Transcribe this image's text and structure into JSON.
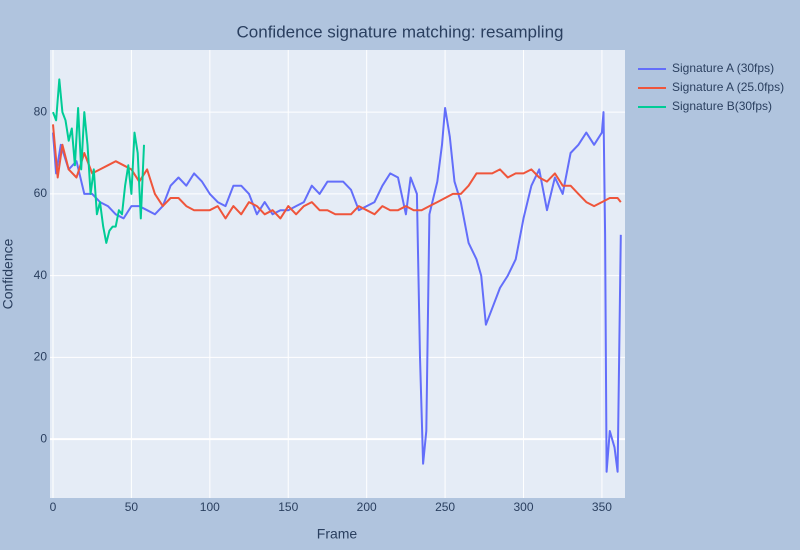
{
  "chart_data": {
    "type": "line",
    "title": "Confidence signature matching: resampling",
    "x_label": "Frame",
    "y_label": "Confidence",
    "xlim": [
      -1.9,
      364.7
    ],
    "ylim": [
      -14.4,
      95.2
    ],
    "xticks": [
      0,
      50,
      100,
      150,
      200,
      250,
      300,
      350
    ],
    "yticks": [
      0,
      20,
      40,
      60,
      80
    ],
    "grid": true,
    "legend": "outside-top-right",
    "series": [
      {
        "name": "Signature A (30fps)",
        "color": "#636efa",
        "x": [
          0,
          2,
          5,
          10,
          15,
          20,
          25,
          30,
          35,
          40,
          45,
          50,
          55,
          60,
          65,
          70,
          75,
          80,
          85,
          90,
          95,
          100,
          105,
          110,
          115,
          120,
          125,
          130,
          135,
          140,
          145,
          150,
          155,
          160,
          165,
          170,
          175,
          180,
          185,
          190,
          195,
          200,
          205,
          210,
          215,
          220,
          225,
          228,
          232,
          234,
          236,
          238,
          240,
          245,
          248,
          250,
          253,
          256,
          260,
          265,
          270,
          273,
          276,
          280,
          285,
          290,
          295,
          300,
          305,
          310,
          315,
          320,
          325,
          330,
          335,
          340,
          345,
          350,
          351,
          352,
          353,
          355,
          358,
          360,
          362
        ],
        "values": [
          75,
          65,
          72,
          66,
          68,
          60,
          60,
          58,
          57,
          55,
          54,
          57,
          57,
          56,
          55,
          57,
          62,
          64,
          62,
          65,
          63,
          60,
          58,
          57,
          62,
          62,
          60,
          55,
          58,
          55,
          56,
          56,
          57,
          58,
          62,
          60,
          63,
          63,
          63,
          61,
          56,
          57,
          58,
          62,
          65,
          64,
          55,
          64,
          60,
          20,
          -6,
          2,
          55,
          63,
          72,
          81,
          74,
          63,
          58,
          48,
          44,
          40,
          28,
          32,
          37,
          40,
          44,
          54,
          62,
          66,
          56,
          64,
          60,
          70,
          72,
          75,
          72,
          75,
          80,
          50,
          -8,
          2,
          -2,
          -8,
          50
        ]
      },
      {
        "name": "Signature A (25.0fps)",
        "color": "#ef553b",
        "x": [
          0,
          3,
          6,
          10,
          15,
          20,
          25,
          30,
          35,
          40,
          45,
          50,
          55,
          60,
          65,
          70,
          75,
          80,
          85,
          90,
          95,
          100,
          105,
          110,
          115,
          120,
          125,
          130,
          135,
          140,
          145,
          150,
          155,
          160,
          165,
          170,
          175,
          180,
          185,
          190,
          195,
          200,
          205,
          210,
          215,
          220,
          225,
          230,
          235,
          240,
          245,
          250,
          255,
          260,
          265,
          270,
          275,
          280,
          285,
          290,
          295,
          300,
          305,
          310,
          315,
          320,
          325,
          330,
          335,
          340,
          345,
          350,
          355,
          360,
          362
        ],
        "values": [
          77,
          64,
          72,
          66,
          64,
          70,
          65,
          66,
          67,
          68,
          67,
          66,
          63,
          66,
          60,
          57,
          59,
          59,
          57,
          56,
          56,
          56,
          57,
          54,
          57,
          55,
          58,
          57,
          55,
          56,
          54,
          57,
          55,
          57,
          58,
          56,
          56,
          55,
          55,
          55,
          57,
          56,
          55,
          57,
          56,
          56,
          57,
          56,
          56,
          57,
          58,
          59,
          60,
          60,
          62,
          65,
          65,
          65,
          66,
          64,
          65,
          65,
          66,
          64,
          63,
          65,
          62,
          62,
          60,
          58,
          57,
          58,
          59,
          59,
          58
        ]
      },
      {
        "name": "Signature B(30fps)",
        "color": "#00cc96",
        "x": [
          0,
          2,
          4,
          6,
          8,
          10,
          12,
          14,
          16,
          18,
          20,
          22,
          24,
          26,
          28,
          30,
          32,
          34,
          36,
          38,
          40,
          42,
          44,
          46,
          48,
          50,
          52,
          54,
          56,
          58
        ],
        "values": [
          80,
          78,
          88,
          80,
          78,
          73,
          76,
          67,
          81,
          66,
          80,
          72,
          60,
          66,
          55,
          58,
          52,
          48,
          51,
          52,
          52,
          56,
          55,
          62,
          67,
          60,
          75,
          70,
          54,
          72
        ]
      }
    ]
  }
}
